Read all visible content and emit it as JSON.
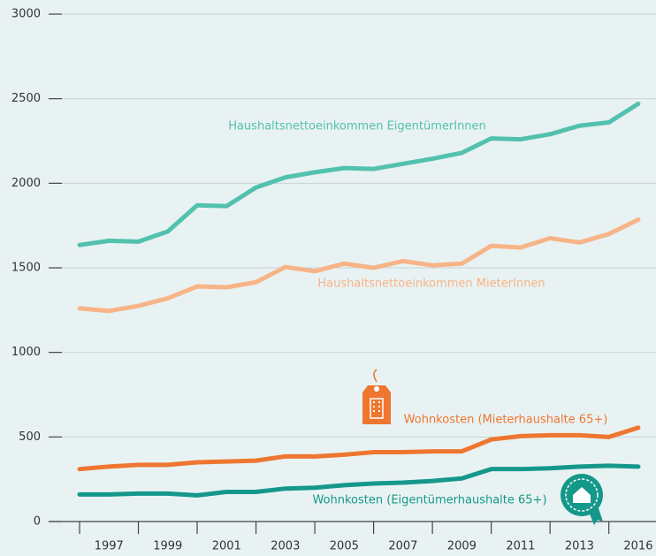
{
  "chart_data": {
    "type": "line",
    "categories": [
      null,
      "1997",
      null,
      "1999",
      null,
      "2001",
      null,
      "2003",
      null,
      "2005",
      null,
      "2007",
      null,
      "2009",
      null,
      "2011",
      null,
      "2013",
      null,
      "2016"
    ],
    "ylim": [
      0,
      3000
    ],
    "yticks": [
      0,
      500,
      1000,
      1500,
      2000,
      2500,
      3000
    ],
    "grid": true,
    "series": [
      {
        "name": "Haushaltsnettoeinkommen EigentümerInnen",
        "color": "#52c1ae",
        "values": [
          1635,
          1660,
          1655,
          1715,
          1870,
          1865,
          1975,
          2035,
          2065,
          2090,
          2085,
          2115,
          2145,
          2180,
          2265,
          2260,
          2290,
          2340,
          2360,
          2470
        ]
      },
      {
        "name": "Haushaltsnettoeinkommen MieterInnen",
        "color": "#f7b487",
        "values": [
          1260,
          1245,
          1275,
          1320,
          1390,
          1385,
          1415,
          1505,
          1480,
          1525,
          1500,
          1540,
          1515,
          1525,
          1630,
          1620,
          1675,
          1650,
          1700,
          1785
        ]
      },
      {
        "name": "Wohnkosten (Mieterhaushalte 65+)",
        "color": "#ee7630",
        "values": [
          310,
          325,
          335,
          335,
          350,
          355,
          360,
          385,
          385,
          395,
          410,
          410,
          415,
          415,
          485,
          505,
          510,
          510,
          500,
          555
        ]
      },
      {
        "name": "Wohnkosten (Eigentümerhaushalte 65+)",
        "color": "#14988a",
        "values": [
          160,
          160,
          165,
          165,
          155,
          175,
          175,
          195,
          200,
          215,
          225,
          230,
          240,
          255,
          310,
          310,
          315,
          325,
          330,
          325
        ]
      }
    ]
  }
}
